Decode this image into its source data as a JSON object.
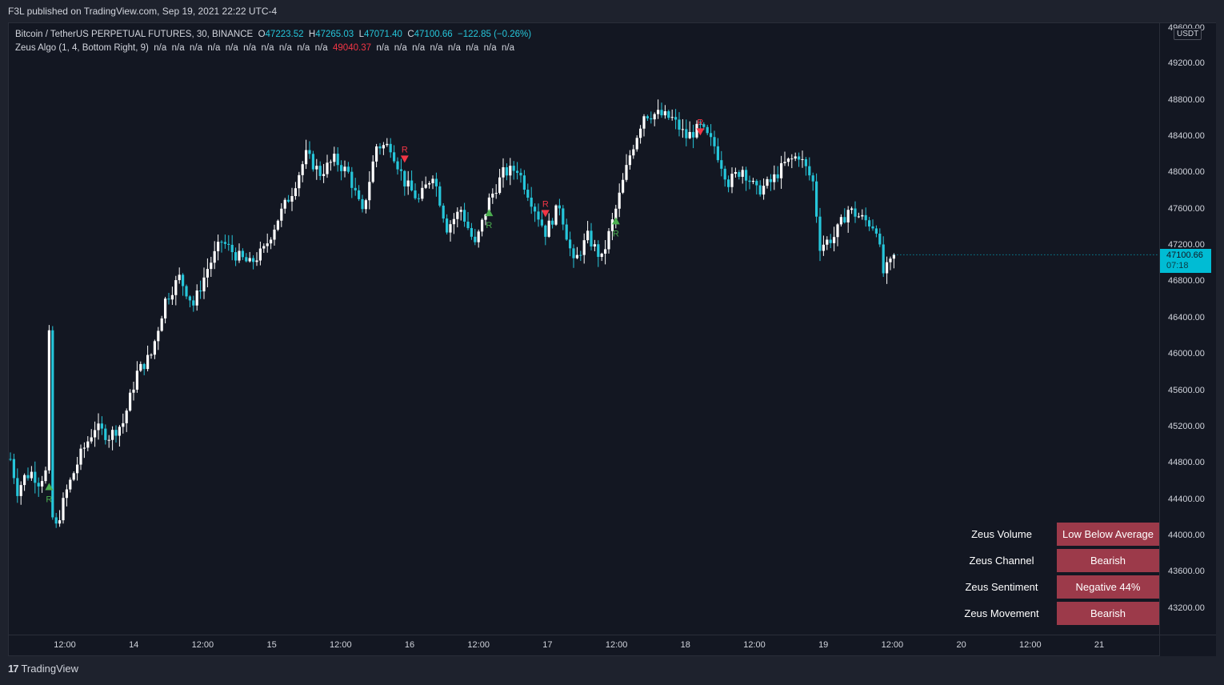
{
  "header": {
    "publish_text": "F3L published on TradingView.com, Sep 19, 2021 22:22 UTC-4"
  },
  "legend": {
    "symbol": "Bitcoin / TetherUS PERPETUAL FUTURES, 30, BINANCE",
    "open_label": "O",
    "open": "47223.52",
    "high_label": "H",
    "high": "47265.03",
    "low_label": "L",
    "low": "47071.40",
    "close_label": "C",
    "close": "47100.66",
    "change": "−122.85 (−0.26%)",
    "indicator_name": "Zeus Algo (1, 4, Bottom Right, 9)",
    "indicator_values_before": "n/a  n/a  n/a  n/a  n/a  n/a  n/a  n/a  n/a  n/a",
    "indicator_highlight": "49040.37",
    "indicator_values_after": "n/a  n/a  n/a  n/a  n/a  n/a  n/a  n/a"
  },
  "price_axis": {
    "currency": "USDT",
    "top_partial": "49600.00",
    "ticks": [
      "49200.00",
      "48800.00",
      "48400.00",
      "48000.00",
      "47600.00",
      "47200.00",
      "46800.00",
      "46400.00",
      "46000.00",
      "45600.00",
      "45200.00",
      "44800.00",
      "44400.00",
      "44000.00",
      "43600.00",
      "43200.00"
    ],
    "last_price": "47100.66",
    "countdown": "07:18"
  },
  "time_axis": {
    "ticks": [
      "12:00",
      "14",
      "12:00",
      "15",
      "12:00",
      "16",
      "12:00",
      "17",
      "12:00",
      "18",
      "12:00",
      "19",
      "12:00",
      "20",
      "12:00",
      "21"
    ]
  },
  "signal_marker_label": "R",
  "zeus_panel": [
    {
      "label": "Zeus Volume",
      "value": "Low Below Average"
    },
    {
      "label": "Zeus Channel",
      "value": "Bearish"
    },
    {
      "label": "Zeus Sentiment",
      "value": "Negative 44%"
    },
    {
      "label": "Zeus Movement",
      "value": "Bearish"
    }
  ],
  "footer": {
    "brand": "TradingView",
    "logo_text": "17"
  },
  "colors": {
    "background": "#131722",
    "up_candle": "#ffffff",
    "down_candle": "#26c6da",
    "buy_signal": "#4caf50",
    "sell_signal": "#f23645",
    "panel_value_bg": "#9c3a4a"
  },
  "chart_data": {
    "type": "candlestick",
    "title": "Bitcoin / TetherUS PERPETUAL FUTURES, 30, BINANCE",
    "ylim": [
      43000,
      49700
    ],
    "x_ticks": [
      "12:00",
      "14",
      "12:00",
      "15",
      "12:00",
      "16",
      "12:00",
      "17",
      "12:00",
      "18",
      "12:00",
      "19",
      "12:00",
      "20",
      "12:00",
      "21"
    ],
    "close_path": [
      {
        "t": 0,
        "price": 44850
      },
      {
        "t": 2,
        "price": 44500
      },
      {
        "t": 4,
        "price": 44650
      },
      {
        "t": 6,
        "price": 44700
      },
      {
        "t": 8,
        "price": 44600
      },
      {
        "t": 10,
        "price": 44700
      },
      {
        "t": 11,
        "price": 46200
      },
      {
        "t": 12,
        "price": 44200
      },
      {
        "t": 13,
        "price": 44100
      },
      {
        "t": 16,
        "price": 44500
      },
      {
        "t": 20,
        "price": 44900
      },
      {
        "t": 24,
        "price": 45200
      },
      {
        "t": 28,
        "price": 45100
      },
      {
        "t": 32,
        "price": 45250
      },
      {
        "t": 36,
        "price": 45800
      },
      {
        "t": 40,
        "price": 46000
      },
      {
        "t": 44,
        "price": 46600
      },
      {
        "t": 48,
        "price": 46850
      },
      {
        "t": 52,
        "price": 46550
      },
      {
        "t": 56,
        "price": 46950
      },
      {
        "t": 60,
        "price": 47250
      },
      {
        "t": 64,
        "price": 47100
      },
      {
        "t": 68,
        "price": 47000
      },
      {
        "t": 72,
        "price": 47150
      },
      {
        "t": 76,
        "price": 47500
      },
      {
        "t": 80,
        "price": 47800
      },
      {
        "t": 84,
        "price": 48200
      },
      {
        "t": 88,
        "price": 48000
      },
      {
        "t": 92,
        "price": 48150
      },
      {
        "t": 96,
        "price": 48000
      },
      {
        "t": 100,
        "price": 47550
      },
      {
        "t": 104,
        "price": 48300
      },
      {
        "t": 108,
        "price": 48300
      },
      {
        "t": 112,
        "price": 47900
      },
      {
        "t": 116,
        "price": 47700
      },
      {
        "t": 120,
        "price": 48000
      },
      {
        "t": 124,
        "price": 47400
      },
      {
        "t": 128,
        "price": 47600
      },
      {
        "t": 132,
        "price": 47200
      },
      {
        "t": 136,
        "price": 47700
      },
      {
        "t": 140,
        "price": 48000
      },
      {
        "t": 144,
        "price": 48050
      },
      {
        "t": 148,
        "price": 47700
      },
      {
        "t": 152,
        "price": 47350
      },
      {
        "t": 156,
        "price": 47650
      },
      {
        "t": 160,
        "price": 47000
      },
      {
        "t": 164,
        "price": 47300
      },
      {
        "t": 168,
        "price": 47050
      },
      {
        "t": 172,
        "price": 47600
      },
      {
        "t": 176,
        "price": 48200
      },
      {
        "t": 180,
        "price": 48650
      },
      {
        "t": 184,
        "price": 48650
      },
      {
        "t": 188,
        "price": 48600
      },
      {
        "t": 192,
        "price": 48400
      },
      {
        "t": 196,
        "price": 48500
      },
      {
        "t": 200,
        "price": 48300
      },
      {
        "t": 204,
        "price": 47900
      },
      {
        "t": 208,
        "price": 48050
      },
      {
        "t": 212,
        "price": 47800
      },
      {
        "t": 216,
        "price": 47900
      },
      {
        "t": 220,
        "price": 48100
      },
      {
        "t": 224,
        "price": 48200
      },
      {
        "t": 228,
        "price": 47900
      },
      {
        "t": 230,
        "price": 47200
      },
      {
        "t": 234,
        "price": 47300
      },
      {
        "t": 238,
        "price": 47600
      },
      {
        "t": 242,
        "price": 47500
      },
      {
        "t": 246,
        "price": 47400
      },
      {
        "t": 248,
        "price": 46900
      },
      {
        "t": 250,
        "price": 47000
      },
      {
        "t": 251,
        "price": 47100
      }
    ],
    "buy_signals": [
      {
        "t": 11,
        "price": 44550
      },
      {
        "t": 136,
        "price": 47570
      },
      {
        "t": 172,
        "price": 47480
      }
    ],
    "sell_signals": [
      {
        "t": 112,
        "price": 48150
      },
      {
        "t": 152,
        "price": 47550
      },
      {
        "t": 196,
        "price": 48450
      }
    ],
    "last": 47100.66
  }
}
